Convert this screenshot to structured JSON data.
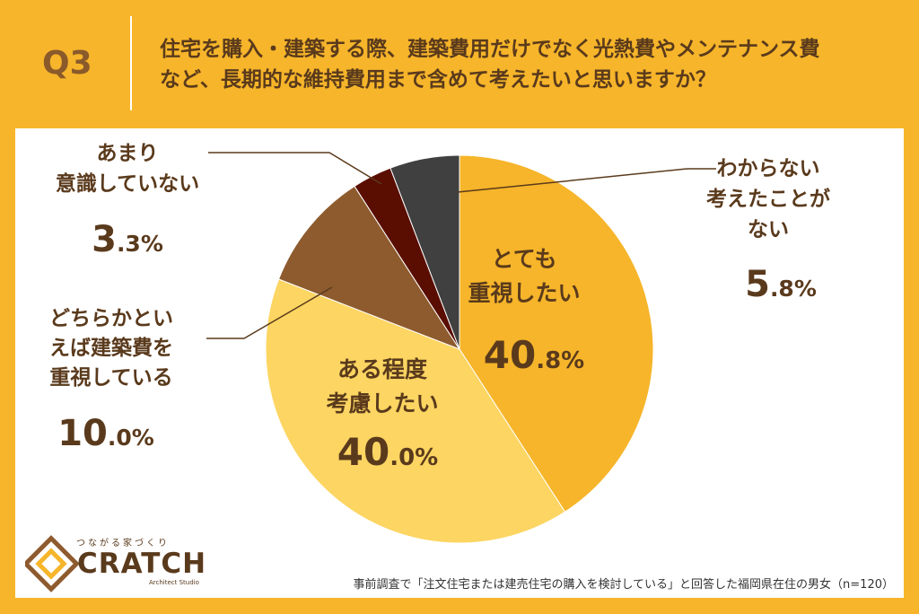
{
  "header": {
    "q_label": "Q3",
    "question_line1": "住宅を購入・建築する際、建築費用だけでなく光熱費やメンテナンス費",
    "question_line2": "など、長期的な維持費用まで含めて考えたいと思いますか？"
  },
  "chart_data": {
    "type": "pie",
    "categories": [
      "とても重視したい",
      "ある程度考慮したい",
      "どちらかといえば建築費を重視している",
      "あまり意識していない",
      "わからない考えたことがない"
    ],
    "values": [
      40.8,
      40.0,
      10.0,
      3.3,
      5.8
    ],
    "slices": [
      {
        "label_lines": [
          "とても",
          "重視したい"
        ],
        "pct_int": "40",
        "pct_dec": ".8%",
        "value": 40.8,
        "color": "#F6B52A"
      },
      {
        "label_lines": [
          "ある程度",
          "考慮したい"
        ],
        "pct_int": "40",
        "pct_dec": ".0%",
        "value": 40.0,
        "color": "#FCD562"
      },
      {
        "label_lines": [
          "どちらかとい",
          "えば建築費を",
          "重視している"
        ],
        "pct_int": "10",
        "pct_dec": ".0%",
        "value": 10.0,
        "color": "#8E5B2E"
      },
      {
        "label_lines": [
          "あまり",
          "意識していない"
        ],
        "pct_int": "3",
        "pct_dec": ".3%",
        "value": 3.3,
        "color": "#5A0E02"
      },
      {
        "label_lines": [
          "わからない",
          "考えたことが",
          "ない"
        ],
        "pct_int": "5",
        "pct_dec": ".8%",
        "value": 5.8,
        "color": "#404040"
      }
    ],
    "start": "top",
    "direction": "clockwise"
  },
  "footer": {
    "note": "事前調査で「注文住宅または建売住宅の購入を検討している」と回答した福岡県在住の男女（n=120）"
  },
  "logo": {
    "tagline": "つながる家づくり",
    "name": "CRATCH",
    "sub": "Architect Studio"
  }
}
